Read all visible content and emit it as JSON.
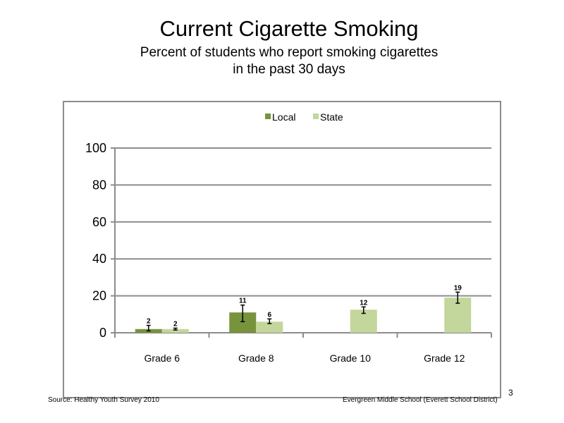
{
  "slide": {
    "title": "Current Cigarette Smoking",
    "subtitle_line1": "Percent of students who report smoking cigarettes",
    "subtitle_line2": "in the past 30 days",
    "source": "Source: Healthy Youth Survey 2010",
    "school": "Evergreen Middle School (Everett School District)",
    "page_number": "3"
  },
  "chart_data": {
    "type": "bar",
    "categories": [
      "Grade 6",
      "Grade 8",
      "Grade 10",
      "Grade 12"
    ],
    "series": [
      {
        "name": "Local",
        "color": "#77933c",
        "values": [
          2,
          11,
          null,
          null
        ],
        "labels": [
          "2",
          "11",
          "",
          ""
        ],
        "error": [
          [
            1,
            4
          ],
          [
            6,
            15
          ],
          null,
          null
        ]
      },
      {
        "name": "State",
        "color": "#c3d69b",
        "values": [
          2,
          6,
          12.5,
          19
        ],
        "labels": [
          "2",
          "6",
          "12",
          "19"
        ],
        "error": [
          [
            1.5,
            2.5
          ],
          [
            5,
            7.5
          ],
          [
            10.5,
            14
          ],
          [
            16,
            22
          ]
        ]
      }
    ],
    "ylim": [
      0,
      100
    ],
    "yticks": [
      0,
      20,
      40,
      60,
      80,
      100
    ],
    "legend_position": "top",
    "grid": true
  }
}
